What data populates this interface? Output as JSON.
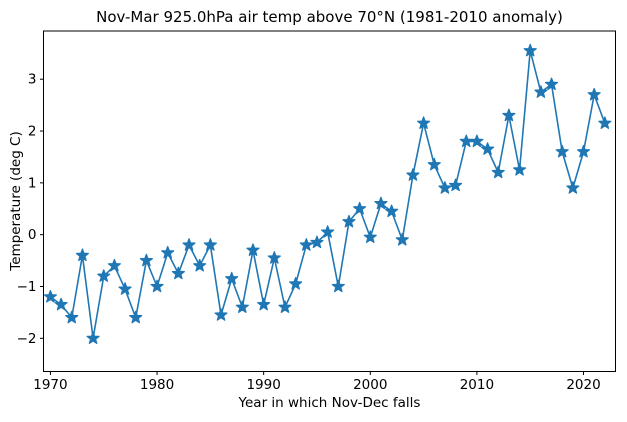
{
  "figure": {
    "background": "#ffffff"
  },
  "chart_data": {
    "type": "line",
    "title": "Nov-Mar 925.0hPa air temp above 70°N (1981-2010 anomaly)",
    "xlabel": "Year in which Nov-Dec falls",
    "ylabel": "Temperature (deg C)",
    "legend": null,
    "grid": false,
    "marker": "star",
    "line_color": "#1f77b4",
    "marker_color": "#1f77b4",
    "axis_color": "#000000",
    "xlim": [
      1969.35,
      2023.0
    ],
    "ylim": [
      -2.64,
      3.93
    ],
    "x_tick_values": [
      1970,
      1980,
      1990,
      2000,
      2010,
      2020
    ],
    "x_tick_labels": [
      "1970",
      "1980",
      "1990",
      "2000",
      "2010",
      "2020"
    ],
    "y_tick_values": [
      -2,
      -1,
      0,
      1,
      2,
      3
    ],
    "y_tick_labels": [
      "−2",
      "−1",
      "0",
      "1",
      "2",
      "3"
    ],
    "x": [
      1970,
      1971,
      1972,
      1973,
      1974,
      1975,
      1976,
      1977,
      1978,
      1979,
      1980,
      1981,
      1982,
      1983,
      1984,
      1985,
      1986,
      1987,
      1988,
      1989,
      1990,
      1991,
      1992,
      1993,
      1994,
      1995,
      1996,
      1997,
      1998,
      1999,
      2000,
      2001,
      2002,
      2003,
      2004,
      2005,
      2006,
      2007,
      2008,
      2009,
      2010,
      2011,
      2012,
      2013,
      2014,
      2015,
      2016,
      2017,
      2018,
      2019,
      2020,
      2021,
      2022
    ],
    "y": [
      -1.2,
      -1.35,
      -1.6,
      -0.4,
      -2.0,
      -0.8,
      -0.6,
      -1.05,
      -1.6,
      -0.5,
      -1.0,
      -0.35,
      -0.75,
      -0.2,
      -0.6,
      -0.2,
      -1.55,
      -0.85,
      -1.4,
      -0.3,
      -1.35,
      -0.45,
      -1.4,
      -0.95,
      -0.2,
      -0.15,
      0.05,
      -1.0,
      0.25,
      0.5,
      -0.05,
      0.6,
      0.45,
      -0.1,
      1.15,
      2.15,
      1.35,
      0.9,
      0.95,
      1.8,
      1.8,
      1.65,
      1.2,
      2.3,
      1.25,
      3.55,
      2.75,
      2.9,
      1.6,
      0.9,
      1.6,
      2.7,
      2.15
    ]
  }
}
